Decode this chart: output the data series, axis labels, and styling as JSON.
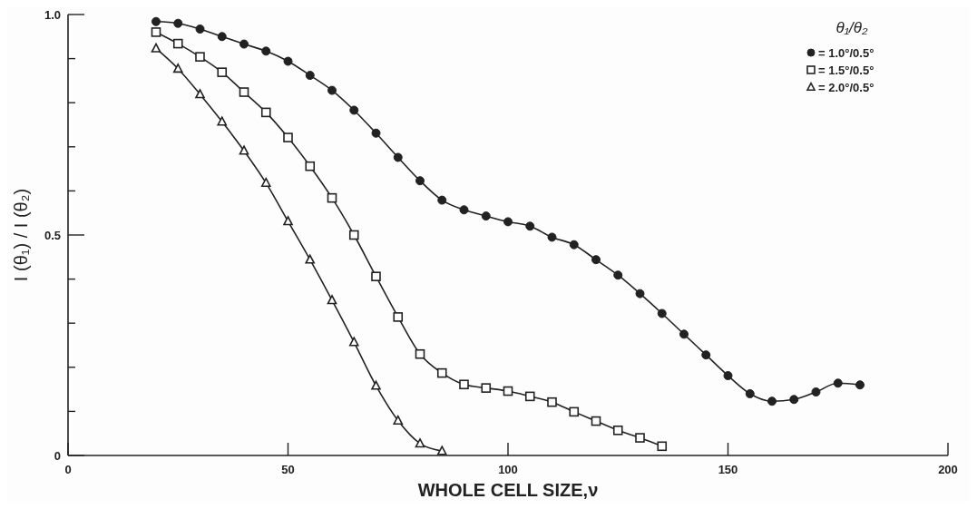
{
  "chart_data": {
    "type": "line",
    "xlabel": "WHOLE CELL SIZE,ν",
    "ylabel": "I (θ₁) / I (θ₂)",
    "legend_title": "θ₁/θ₂",
    "legend": "top right",
    "line_style": "solid",
    "grid": false,
    "xlim": [
      0,
      200
    ],
    "xticks": [
      0,
      50,
      100,
      150,
      200
    ],
    "ylim": [
      0,
      1
    ],
    "yticks": [
      0,
      {
        "value": 0.1,
        "label": null
      },
      {
        "value": 0.2,
        "label": null
      },
      {
        "value": 0.3,
        "label": null
      },
      {
        "value": 0.4,
        "label": null
      },
      0.5,
      {
        "value": 0.6,
        "label": null
      },
      {
        "value": 0.7,
        "label": null
      },
      {
        "value": 0.8,
        "label": null
      },
      {
        "value": 0.9,
        "label": null
      },
      {
        "value": 1,
        "label": "1.0"
      }
    ],
    "series": [
      {
        "name": "= 1.0°/0.5°",
        "color": "#222222",
        "marker": "circle",
        "x": [
          20,
          25,
          30,
          35,
          40,
          45,
          50,
          55,
          60,
          65,
          70,
          75,
          80,
          85,
          90,
          95,
          100,
          105,
          110,
          115,
          120,
          125,
          130,
          135,
          140,
          145,
          150,
          155,
          160,
          165,
          170,
          175,
          180
        ],
        "values": [
          0.984,
          0.98,
          0.967,
          0.95,
          0.933,
          0.917,
          0.894,
          0.862,
          0.828,
          0.783,
          0.731,
          0.676,
          0.623,
          0.579,
          0.557,
          0.543,
          0.53,
          0.52,
          0.495,
          0.478,
          0.444,
          0.409,
          0.367,
          0.322,
          0.275,
          0.228,
          0.181,
          0.14,
          0.123,
          0.127,
          0.144,
          0.164,
          0.16
        ]
      },
      {
        "name": "= 1.5°/0.5°",
        "color": "#222222",
        "marker": "square",
        "x": [
          20,
          25,
          30,
          35,
          40,
          45,
          50,
          55,
          60,
          65,
          70,
          75,
          80,
          85,
          90,
          95,
          100,
          105,
          110,
          115,
          120,
          125,
          130,
          135
        ],
        "values": [
          0.96,
          0.934,
          0.904,
          0.869,
          0.824,
          0.778,
          0.721,
          0.656,
          0.584,
          0.5,
          0.406,
          0.314,
          0.23,
          0.187,
          0.161,
          0.153,
          0.146,
          0.134,
          0.121,
          0.099,
          0.078,
          0.057,
          0.04,
          0.021
        ]
      },
      {
        "name": "= 2.0°/0.5°",
        "color": "#222222",
        "marker": "triangle",
        "x": [
          20,
          25,
          30,
          35,
          40,
          45,
          50,
          55,
          60,
          65,
          70,
          75,
          80,
          85
        ],
        "values": [
          0.923,
          0.877,
          0.819,
          0.757,
          0.691,
          0.618,
          0.531,
          0.444,
          0.352,
          0.257,
          0.158,
          0.079,
          0.027,
          0.01
        ]
      }
    ]
  }
}
